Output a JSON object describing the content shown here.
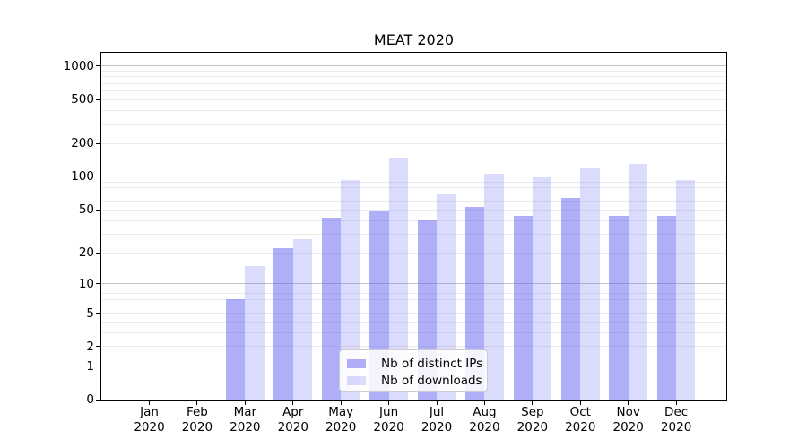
{
  "chart_data": {
    "type": "bar",
    "title": "MEAT 2020",
    "year": "2020",
    "months": [
      "Jan",
      "Feb",
      "Mar",
      "Apr",
      "May",
      "Jun",
      "Jul",
      "Aug",
      "Sep",
      "Oct",
      "Nov",
      "Dec"
    ],
    "categories": [
      "Jan 2020",
      "Feb 2020",
      "Mar 2020",
      "Apr 2020",
      "May 2020",
      "Jun 2020",
      "Jul 2020",
      "Aug 2020",
      "Sep 2020",
      "Oct 2020",
      "Nov 2020",
      "Dec 2020"
    ],
    "series": [
      {
        "name": "Nb of distinct IPs",
        "values": [
          0,
          0,
          7,
          22,
          42,
          48,
          40,
          53,
          44,
          64,
          44,
          44
        ],
        "color": "rgba(110,110,245,0.56)"
      },
      {
        "name": "Nb of downloads",
        "values": [
          0,
          0,
          15,
          27,
          93,
          150,
          70,
          106,
          100,
          122,
          132,
          93
        ],
        "color": "rgba(110,110,245,0.25)"
      }
    ],
    "yscale": "log1p",
    "ylim": [
      0,
      1320
    ],
    "y_ticks": [
      0,
      1,
      2,
      5,
      10,
      20,
      50,
      100,
      200,
      500,
      1000
    ],
    "y_major_gridlines": [
      1,
      10,
      100,
      1000
    ],
    "y_minor_gridlines": [
      2,
      3,
      4,
      5,
      6,
      7,
      8,
      9,
      20,
      30,
      40,
      50,
      60,
      70,
      80,
      90,
      200,
      300,
      400,
      500,
      600,
      700,
      800,
      900
    ],
    "legend_position": "lower center",
    "colors": {
      "bar_base": "#6e6ef5",
      "grid_major": "#c2c2c2",
      "grid_minor": "#ebebeb",
      "spine": "#000000",
      "text": "#000000"
    }
  }
}
